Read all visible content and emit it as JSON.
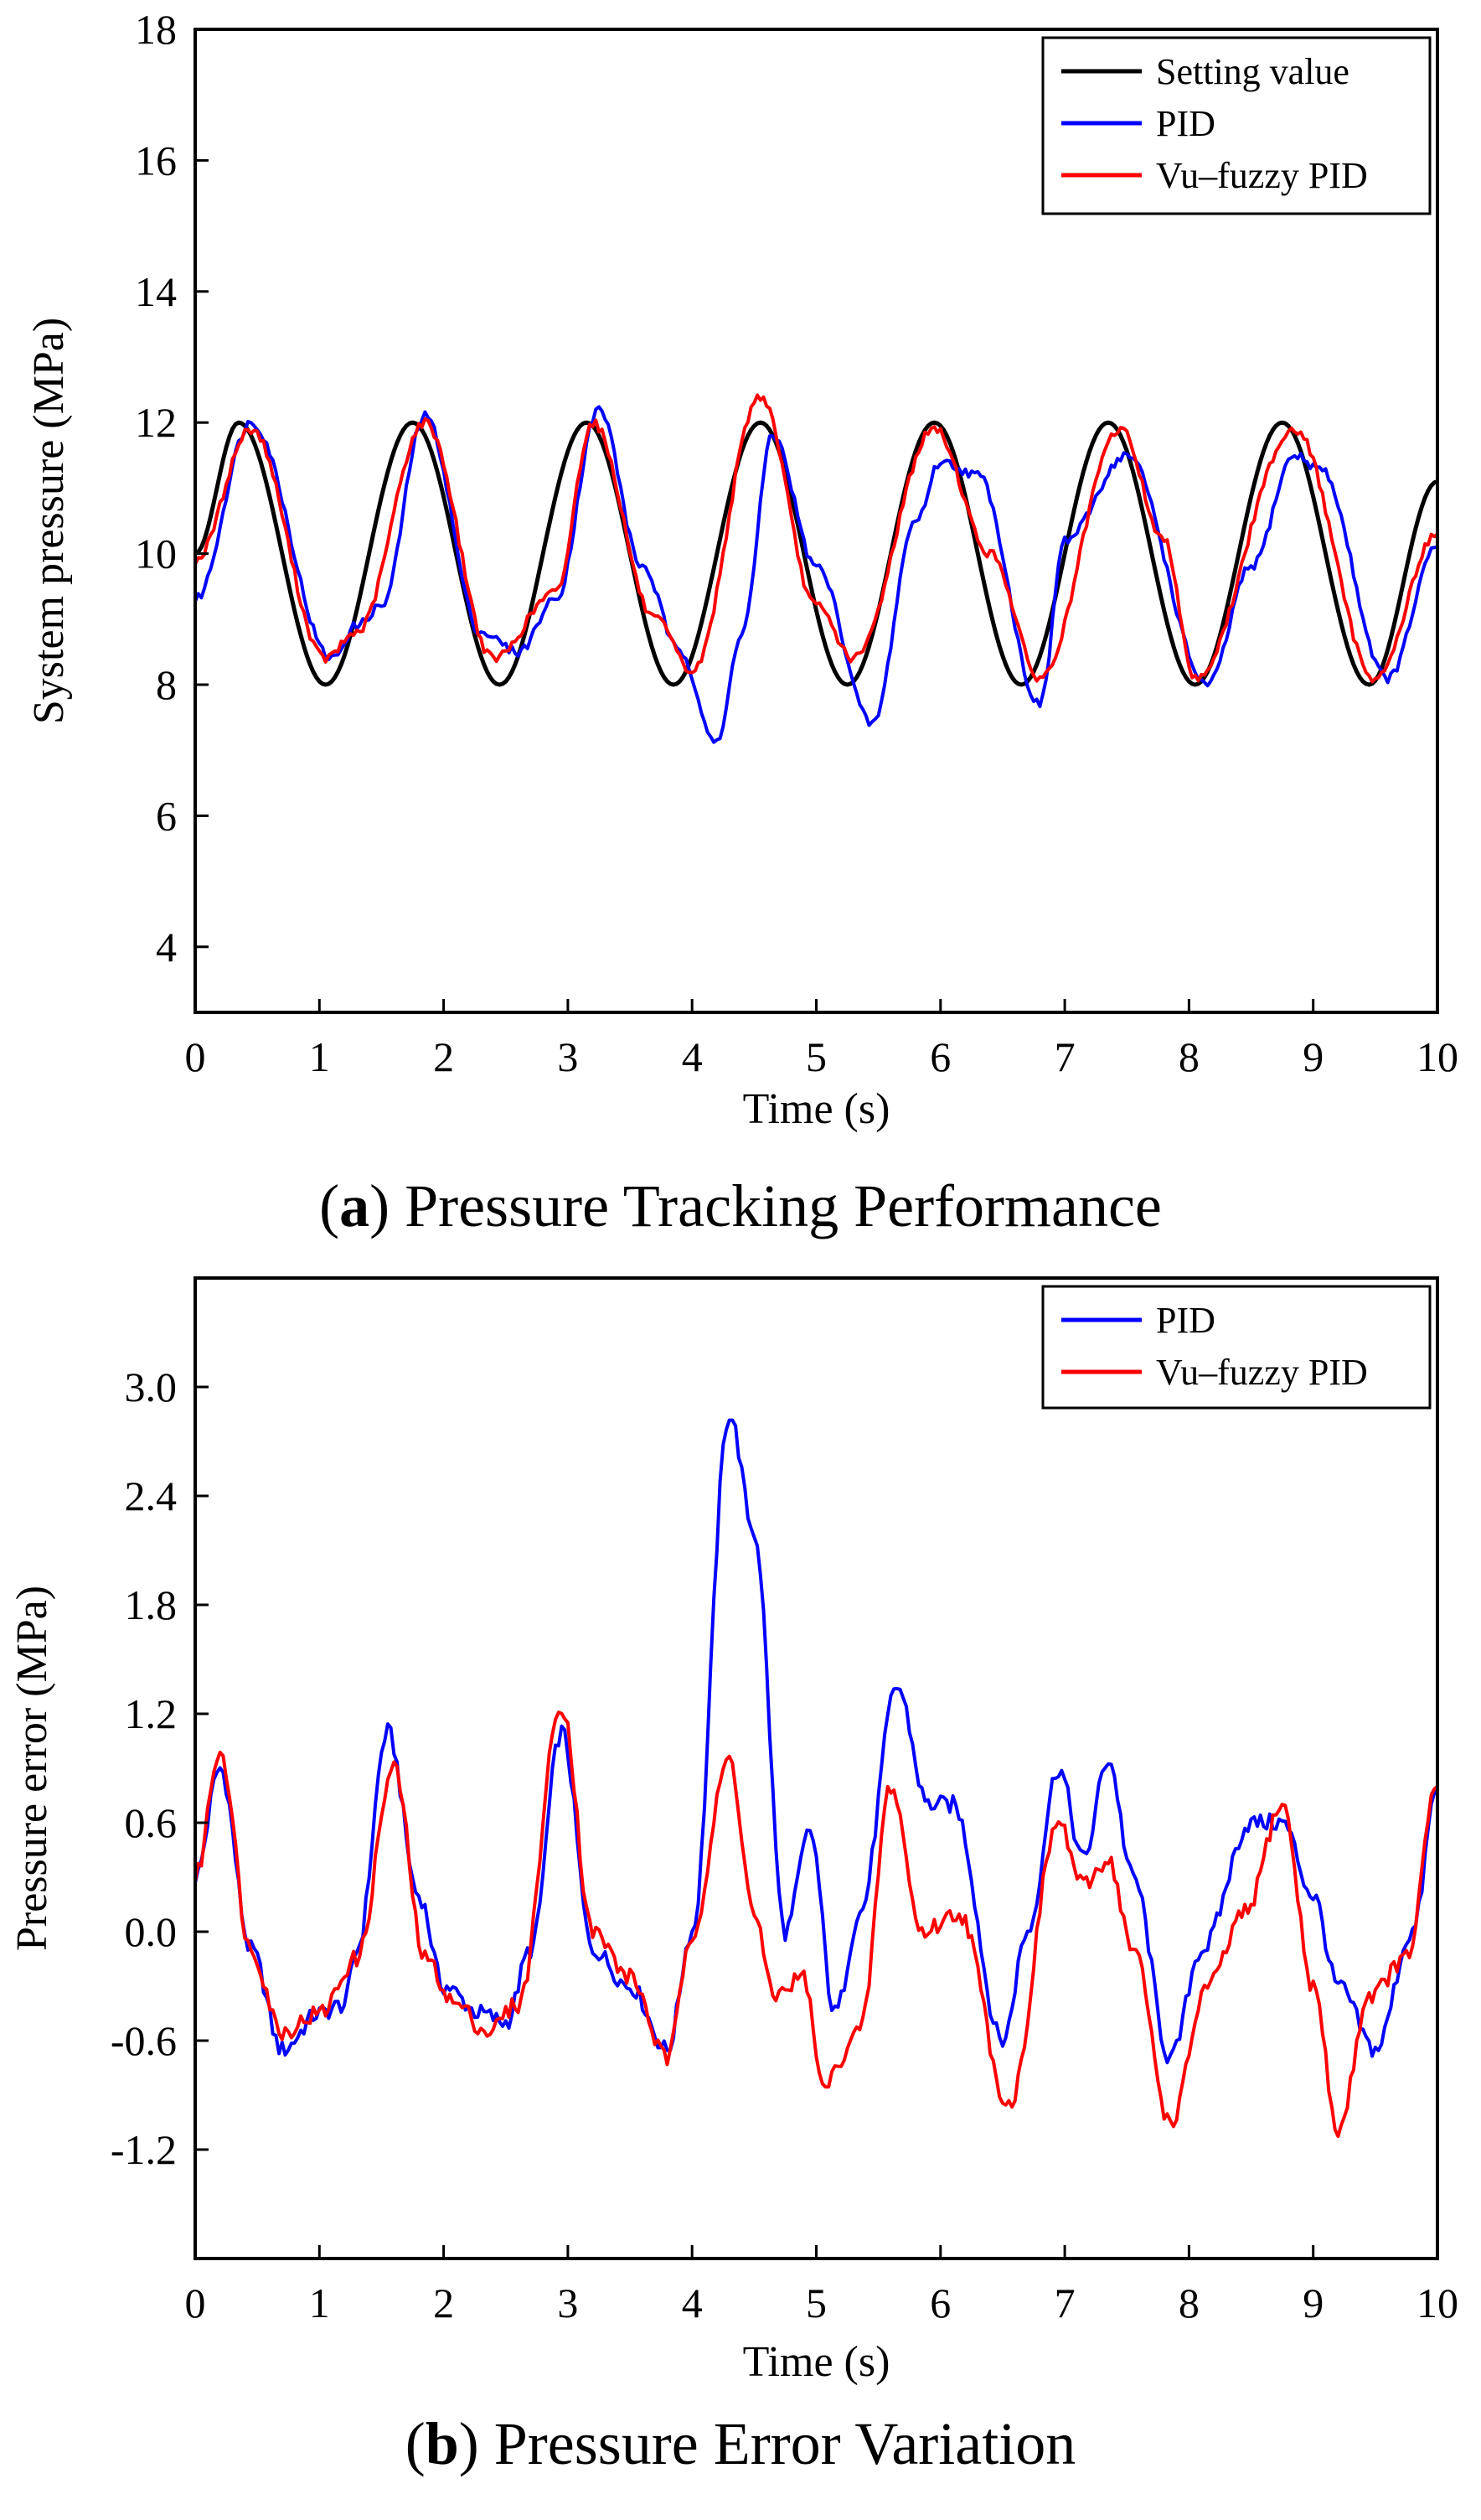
{
  "captions": {
    "a": {
      "letter": "a",
      "text": " Pressure Tracking Performance"
    },
    "b": {
      "letter": "b",
      "text": " Pressure Error Variation"
    }
  },
  "chart_data": [
    {
      "id": "a",
      "type": "line",
      "xlabel": "Time (s)",
      "ylabel": "System pressure (MPa)",
      "xlim": [
        0,
        10
      ],
      "ylim": [
        3,
        18
      ],
      "xticks": [
        0,
        1,
        2,
        3,
        4,
        5,
        6,
        7,
        8,
        9,
        10
      ],
      "yticks": [
        4,
        6,
        8,
        10,
        12,
        14,
        16,
        18
      ],
      "ytick_labels": [
        "4",
        "6",
        "8",
        "10",
        "12",
        "14",
        "16",
        "18"
      ],
      "grid": false,
      "legend": "top-right",
      "series": [
        {
          "name": "Setting value",
          "color": "#000000",
          "x": [
            0,
            0.35,
            1.05,
            1.75,
            2.45,
            3.15,
            3.85,
            4.55,
            5.25,
            5.95,
            6.65,
            7.35,
            8.05,
            8.75,
            9.45,
            10
          ],
          "y": [
            10,
            12,
            8,
            12,
            8,
            12,
            8,
            12,
            8,
            12,
            8,
            12,
            8,
            12,
            8,
            11.1
          ]
        },
        {
          "name": "PID",
          "color": "#0000ff",
          "x": [
            0,
            0.45,
            1.1,
            1.3,
            1.5,
            1.85,
            2.3,
            2.6,
            2.9,
            3.25,
            3.6,
            3.9,
            4.2,
            4.4,
            4.65,
            5.0,
            5.45,
            5.8,
            6.0,
            6.3,
            6.8,
            7.0,
            7.5,
            8.15,
            8.5,
            8.85,
            9.05,
            9.6,
            10
          ],
          "y": [
            9.3,
            12.0,
            8.4,
            8.9,
            9.2,
            12.1,
            8.8,
            8.5,
            9.3,
            12.2,
            9.8,
            8.5,
            7.1,
            8.8,
            11.8,
            9.8,
            7.4,
            10.5,
            11.4,
            11.2,
            7.7,
            10.2,
            11.5,
            8.0,
            9.8,
            11.5,
            11.3,
            8.1,
            10.1
          ]
        },
        {
          "name": "Vu–fuzzy PID",
          "color": "#ff0000",
          "x": [
            0,
            0.45,
            1.05,
            1.3,
            1.85,
            2.4,
            2.9,
            3.2,
            3.7,
            4.0,
            4.55,
            5.0,
            5.3,
            5.95,
            6.4,
            6.8,
            7.45,
            7.8,
            8.05,
            8.85,
            9.5,
            10
          ],
          "y": [
            9.9,
            11.9,
            8.4,
            8.8,
            12.0,
            8.4,
            9.4,
            12.0,
            9.0,
            8.2,
            12.4,
            9.2,
            8.4,
            11.9,
            10.0,
            8.1,
            11.9,
            10.2,
            8.1,
            11.9,
            8.1,
            10.3
          ]
        }
      ]
    },
    {
      "id": "b",
      "type": "line",
      "xlabel": "Time (s)",
      "ylabel": "Pressure error (MPa)",
      "xlim": [
        0,
        10
      ],
      "ylim": [
        -1.8,
        3.6
      ],
      "xticks": [
        0,
        1,
        2,
        3,
        4,
        5,
        6,
        7,
        8,
        9,
        10
      ],
      "yticks": [
        -1.2,
        -0.6,
        0.0,
        0.6,
        1.2,
        1.8,
        2.4,
        3.0
      ],
      "ytick_labels": [
        "-1.2",
        "-0.6",
        "0.0",
        "0.6",
        "1.2",
        "1.8",
        "2.4",
        "3.0"
      ],
      "grid": false,
      "legend": "top-right",
      "series": [
        {
          "name": "PID",
          "color": "#0000ff",
          "x": [
            0,
            0.2,
            0.45,
            0.7,
            1.0,
            1.2,
            1.3,
            1.55,
            1.8,
            2.0,
            2.3,
            2.5,
            2.7,
            2.95,
            3.2,
            3.5,
            3.8,
            4.0,
            4.3,
            4.5,
            4.75,
            4.95,
            5.15,
            5.35,
            5.65,
            5.9,
            6.1,
            6.5,
            6.7,
            6.95,
            7.15,
            7.35,
            7.55,
            7.85,
            8.1,
            8.5,
            8.75,
            9.0,
            9.2,
            9.5,
            9.8,
            10
          ],
          "y": [
            0.3,
            0.9,
            -0.1,
            -0.65,
            -0.45,
            -0.4,
            -0.1,
            1.1,
            0.2,
            -0.3,
            -0.45,
            -0.5,
            -0.1,
            1.1,
            -0.1,
            -0.3,
            -0.65,
            0.0,
            2.85,
            2.2,
            0.0,
            0.55,
            -0.45,
            0.1,
            1.35,
            0.7,
            0.7,
            -0.6,
            0.0,
            0.9,
            0.4,
            0.95,
            0.3,
            -0.7,
            -0.1,
            0.6,
            0.6,
            0.2,
            -0.3,
            -0.65,
            0.0,
            0.8
          ]
        },
        {
          "name": "Vu–fuzzy PID",
          "color": "#ff0000",
          "x": [
            0,
            0.2,
            0.45,
            0.7,
            1.0,
            1.3,
            1.6,
            1.85,
            2.1,
            2.35,
            2.6,
            2.95,
            3.2,
            3.5,
            3.8,
            4.0,
            4.3,
            4.5,
            4.65,
            4.9,
            5.05,
            5.35,
            5.6,
            5.85,
            6.15,
            6.55,
            6.95,
            7.15,
            7.35,
            7.55,
            7.85,
            8.15,
            8.45,
            8.75,
            9.0,
            9.2,
            9.45,
            9.75,
            10
          ],
          "y": [
            0.3,
            1.0,
            -0.1,
            -0.55,
            -0.45,
            -0.15,
            0.9,
            -0.15,
            -0.4,
            -0.55,
            -0.4,
            1.25,
            0.0,
            -0.25,
            -0.7,
            0.0,
            0.95,
            0.1,
            -0.35,
            -0.25,
            -0.85,
            -0.55,
            0.8,
            0.0,
            0.1,
            -0.95,
            0.6,
            0.25,
            0.4,
            -0.1,
            -1.05,
            -0.3,
            0.1,
            0.7,
            -0.3,
            -1.1,
            -0.35,
            -0.15,
            0.8
          ]
        }
      ]
    }
  ]
}
